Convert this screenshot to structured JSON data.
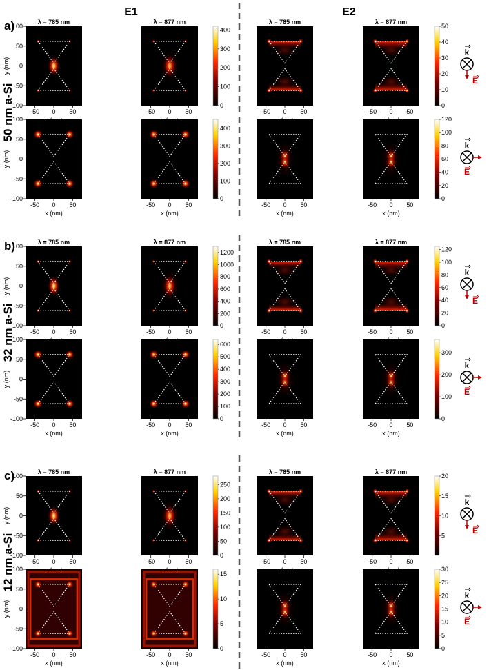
{
  "columns": {
    "left": "E1",
    "right": "E2"
  },
  "wavelengths": [
    "λ = 785 nm",
    "λ = 877 nm"
  ],
  "axis": {
    "xlabel": "x (nm)",
    "ylabel": "y (nm)",
    "xticks": [
      "-50",
      "0",
      "50"
    ],
    "yticks": [
      "100",
      "50",
      "0",
      "-50",
      "-100"
    ],
    "xlim": [
      -75,
      75
    ],
    "ylim": [
      -100,
      100
    ]
  },
  "vectors": {
    "k": "k",
    "e": "E"
  },
  "colors": {
    "field_low": "#000000",
    "field_mid": "#ff3300",
    "field_high": "#ffffff",
    "pol_vector": "#c00000",
    "divider": "#555555"
  },
  "panels": [
    {
      "label": "a)",
      "side": "50 nm a-Si",
      "rows": [
        {
          "pol": "vertical",
          "e1": {
            "mode": "center",
            "ticks": [
              "400",
              "300",
              "200",
              "100",
              "0"
            ],
            "max": 420
          },
          "e2": {
            "mode": "bases",
            "ticks": [
              "50",
              "40",
              "30",
              "20",
              "10",
              "0"
            ],
            "max": 50
          }
        },
        {
          "pol": "horizontal",
          "e1": {
            "mode": "corners",
            "ticks": [
              "400",
              "300",
              "200",
              "100",
              "0"
            ],
            "max": 450
          },
          "e2": {
            "mode": "tips",
            "ticks": [
              "120",
              "100",
              "80",
              "60",
              "40",
              "20",
              "0"
            ],
            "max": 120
          }
        }
      ]
    },
    {
      "label": "b)",
      "side": "32 nm a-Si",
      "rows": [
        {
          "pol": "vertical",
          "e1": {
            "mode": "center",
            "ticks": [
              "1200",
              "1000",
              "800",
              "600",
              "400",
              "200",
              "0"
            ],
            "max": 1300
          },
          "e2": {
            "mode": "bases",
            "ticks": [
              "120",
              "100",
              "80",
              "60",
              "40",
              "20",
              "0"
            ],
            "max": 125
          }
        },
        {
          "pol": "horizontal",
          "e1": {
            "mode": "corners",
            "ticks": [
              "600",
              "500",
              "400",
              "300",
              "200",
              "100",
              "0"
            ],
            "max": 640
          },
          "e2": {
            "mode": "tips",
            "ticks": [
              "300",
              "200",
              "100",
              "0"
            ],
            "max": 360
          }
        }
      ]
    },
    {
      "label": "c)",
      "side": "12 nm a-Si",
      "rows": [
        {
          "pol": "vertical",
          "e1": {
            "mode": "center",
            "ticks": [
              "250",
              "200",
              "150",
              "100",
              "50",
              "0"
            ],
            "max": 280
          },
          "e2": {
            "mode": "bases",
            "ticks": [
              "20",
              "15",
              "10",
              "5"
            ],
            "max": 20
          }
        },
        {
          "pol": "horizontal",
          "e1": {
            "mode": "frame",
            "ticks": [
              "15",
              "10",
              "5",
              "0"
            ],
            "max": 16
          },
          "e2": {
            "mode": "tips",
            "ticks": [
              "30",
              "25",
              "20",
              "15",
              "10",
              "5",
              "0"
            ],
            "max": 30
          }
        }
      ]
    }
  ]
}
